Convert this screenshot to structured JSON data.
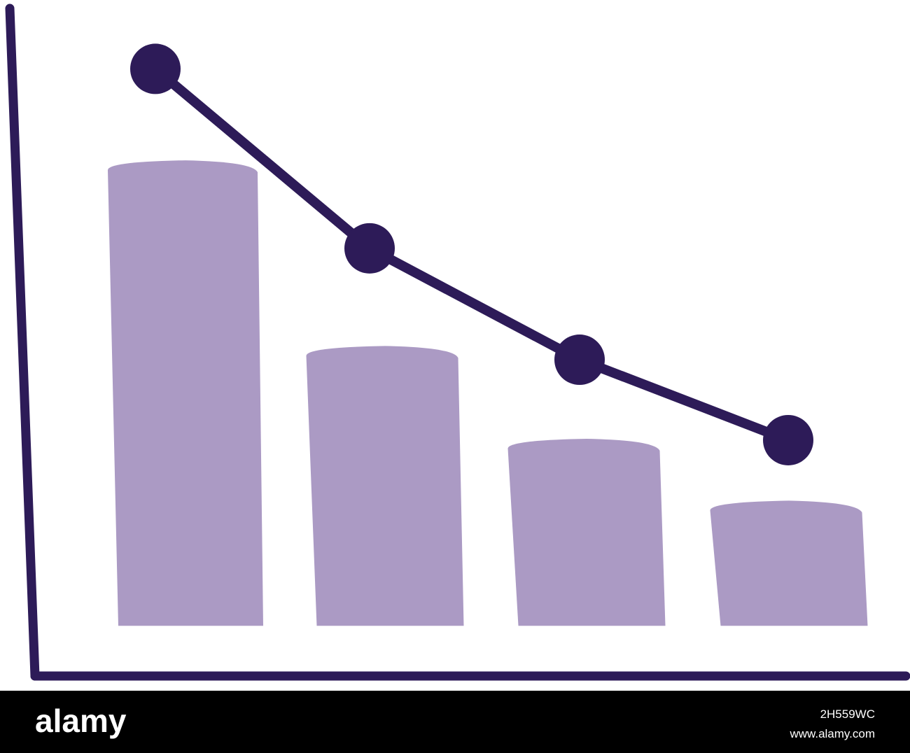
{
  "chart_data": {
    "type": "bar-line",
    "categories": [
      null,
      null,
      null,
      null
    ],
    "series": [
      {
        "type": "bar",
        "color": "#ab9ac4",
        "values": [
          75,
          45,
          30,
          20
        ]
      },
      {
        "type": "line",
        "color": "#2d1b58",
        "values": [
          90,
          61,
          43,
          30
        ]
      }
    ],
    "ylim": [
      -8,
      100
    ],
    "axis_color": "#2d1b58"
  },
  "footer": {
    "logo": "alamy",
    "image_id": "2H559WC",
    "url": "www.alamy.com"
  }
}
